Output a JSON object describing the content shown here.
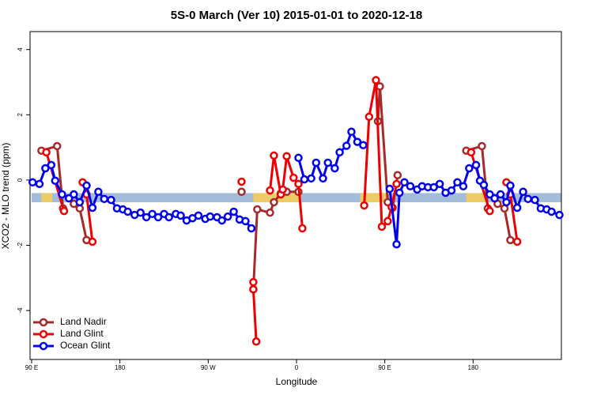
{
  "chart_data": {
    "type": "line",
    "title": "5S-0 March (Ver 10)   2015-01-01 to 2020-12-18",
    "x_label": "Longitude",
    "y_label": "XCO2 - MLO trend (ppm)",
    "xlim": [
      90,
      630
    ],
    "xticks": [
      {
        "value": 90,
        "label": "90 E"
      },
      180,
      {
        "value": 270,
        "label": "90 W"
      },
      {
        "value": 360,
        "label": "0"
      },
      {
        "value": 450,
        "label": "90 E"
      },
      {
        "value": 540,
        "label": "180"
      }
    ],
    "ylim": [
      -5.5,
      4.55
    ],
    "yticks": [
      -4,
      -2,
      0,
      2,
      4
    ],
    "legend": "bottom-left",
    "reference_band": {
      "range": [
        -0.68,
        -0.4
      ],
      "color": "#a3bcd9",
      "highlight_color": "#f5cd5a",
      "highlights": [
        [
          100,
          111
        ],
        [
          316,
          364
        ],
        [
          425,
          453
        ],
        [
          533,
          553
        ]
      ]
    },
    "series": [
      {
        "name": "Land Nadir",
        "color": "#a52a2a",
        "x": [
          100,
          116,
          122,
          null,
          133,
          139,
          146,
          null,
          304,
          null,
          316,
          320,
          333,
          337,
          344,
          350,
          362,
          null,
          443,
          445,
          453,
          458,
          463,
          null,
          533,
          549,
          555,
          null,
          565,
          572,
          578
        ],
        "values": [
          0.9,
          1.04,
          -0.87,
          null,
          -0.73,
          -0.87,
          -1.84,
          null,
          -0.36,
          null,
          -3.35,
          -0.9,
          -1.0,
          -0.68,
          -0.41,
          -0.36,
          -0.36,
          null,
          1.8,
          2.87,
          -0.68,
          -0.85,
          0.15,
          null,
          0.9,
          1.04,
          -0.87,
          null,
          -0.73,
          -0.87,
          -1.84
        ]
      },
      {
        "name": "Land Glint",
        "color": "#ee0000",
        "x": [
          105,
          123,
          null,
          142,
          146,
          152,
          null,
          304,
          null,
          316,
          316,
          319,
          null,
          333,
          337,
          344,
          346,
          350,
          357,
          362,
          366,
          null,
          429,
          434,
          441,
          447,
          453,
          457,
          462,
          null,
          538,
          557,
          null,
          574,
          578,
          585
        ],
        "values": [
          0.85,
          -0.95,
          null,
          -0.07,
          -0.44,
          -1.89,
          null,
          -0.05,
          null,
          -3.13,
          -3.35,
          -4.95,
          null,
          -0.32,
          0.75,
          -0.44,
          -0.29,
          0.73,
          0.07,
          -0.12,
          -1.48,
          null,
          -0.78,
          1.94,
          3.06,
          -1.43,
          -1.26,
          -0.83,
          -0.12,
          null,
          0.85,
          -0.95,
          null,
          -0.07,
          -0.44,
          -1.89
        ]
      },
      {
        "name": "Ocean Glint",
        "color": "#0000ee",
        "x": [
          91,
          98,
          104,
          110,
          114,
          121,
          128,
          133,
          139,
          146,
          152,
          158,
          164,
          171,
          177,
          183,
          188,
          195,
          201,
          207,
          213,
          219,
          225,
          230,
          237,
          242,
          248,
          254,
          260,
          267,
          272,
          279,
          284,
          290,
          296,
          302,
          308,
          314,
          null,
          362,
          368,
          375,
          380,
          387,
          392,
          399,
          404,
          411,
          416,
          422,
          428,
          null,
          455,
          462,
          465,
          470,
          476,
          483,
          488,
          494,
          500,
          506,
          512,
          518,
          524,
          530,
          536,
          543,
          547,
          551,
          557,
          562,
          568,
          574,
          578,
          585,
          591,
          596,
          603,
          609,
          615,
          620,
          628
        ],
        "values": [
          -0.07,
          -0.12,
          0.36,
          0.46,
          -0.02,
          -0.44,
          -0.56,
          -0.44,
          -0.68,
          -0.17,
          -0.85,
          -0.36,
          -0.58,
          -0.61,
          -0.87,
          -0.9,
          -0.97,
          -1.07,
          -1.0,
          -1.14,
          -1.04,
          -1.14,
          -1.04,
          -1.14,
          -1.04,
          -1.09,
          -1.24,
          -1.17,
          -1.09,
          -1.19,
          -1.12,
          -1.14,
          -1.24,
          -1.12,
          -0.97,
          -1.21,
          -1.26,
          -1.48,
          null,
          0.68,
          0.02,
          0.05,
          0.53,
          0.05,
          0.53,
          0.36,
          0.85,
          1.05,
          1.48,
          1.17,
          1.07,
          null,
          -0.27,
          -1.97,
          -0.39,
          -0.07,
          -0.19,
          -0.29,
          -0.19,
          -0.22,
          -0.22,
          -0.12,
          -0.39,
          -0.32,
          -0.07,
          -0.19,
          0.36,
          0.46,
          -0.02,
          -0.15,
          -0.44,
          -0.56,
          -0.44,
          -0.68,
          -0.17,
          -0.85,
          -0.36,
          -0.58,
          -0.61,
          -0.87,
          -0.9,
          -0.97,
          -1.07
        ]
      }
    ]
  }
}
